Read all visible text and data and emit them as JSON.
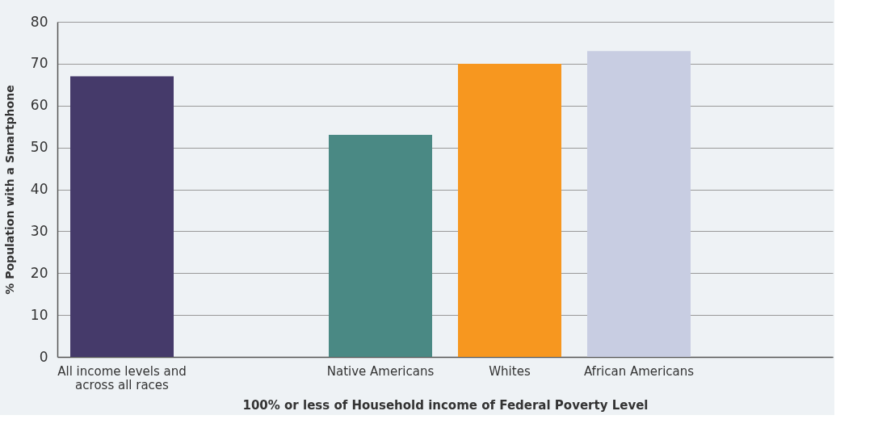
{
  "chart_data": {
    "type": "bar",
    "categories": [
      "All income levels and across all races",
      null,
      "Native Americans",
      "Whites",
      "African Americans",
      null
    ],
    "values": [
      67,
      null,
      53,
      70,
      73,
      null
    ],
    "colors": [
      "#453a6a",
      "#cccccc",
      "#4a8984",
      "#f7971f",
      "#c8cde2",
      "#cccccc"
    ],
    "ylabel": "% Population with a Smartphone",
    "xlabel": "100% or less of Household income of Federal Poverty Level",
    "ylim": [
      0,
      80
    ],
    "yticks": [
      0,
      10,
      20,
      30,
      40,
      50,
      60,
      70,
      80
    ],
    "grid": "y",
    "legend": false
  }
}
